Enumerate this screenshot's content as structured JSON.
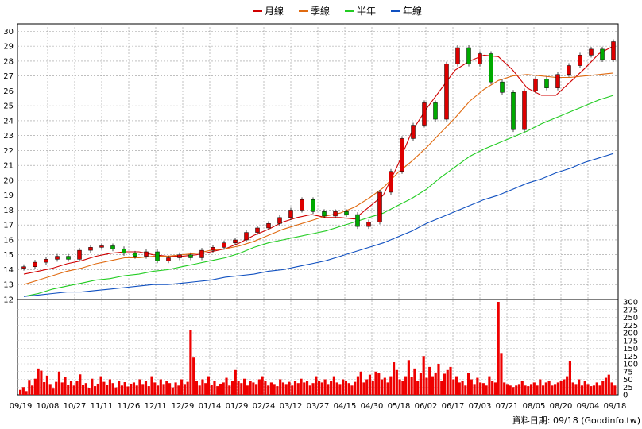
{
  "chart_data": [
    {
      "type": "candlestick",
      "legend": [
        {
          "name": "月線",
          "color": "#d00000"
        },
        {
          "name": "季線",
          "color": "#e06a10"
        },
        {
          "name": "半年",
          "color": "#22cc22"
        },
        {
          "name": "年線",
          "color": "#1050c0"
        }
      ],
      "legend_position": "top-center",
      "grid": true,
      "up_color": "#dd0000",
      "down_color": "#00aa00",
      "ylim": [
        12,
        30.5
      ],
      "yticks": [
        12,
        13,
        14,
        15,
        16,
        17,
        18,
        19,
        20,
        21,
        22,
        23,
        24,
        25,
        26,
        27,
        28,
        29,
        30
      ],
      "series": [
        {
          "name": "月線",
          "key": "ma_month",
          "values": [
            13.7,
            13.9,
            14.1,
            14.4,
            14.6,
            14.9,
            15.1,
            15.2,
            15.2,
            15.0,
            14.9,
            14.9,
            15.0,
            15.2,
            15.4,
            15.8,
            16.3,
            16.7,
            17.2,
            17.5,
            17.7,
            17.5,
            17.5,
            17.4,
            18.2,
            19.0,
            21.0,
            23.3,
            24.8,
            26.1,
            27.4,
            28.0,
            28.4,
            28.3,
            27.4,
            26.2,
            25.7,
            25.7,
            26.6,
            27.5,
            28.5,
            29.0
          ]
        },
        {
          "name": "季線",
          "key": "ma_quarter",
          "values": [
            13.0,
            13.3,
            13.6,
            13.9,
            14.1,
            14.4,
            14.6,
            14.8,
            14.8,
            14.9,
            14.9,
            15.0,
            15.1,
            15.3,
            15.4,
            15.6,
            15.9,
            16.3,
            16.7,
            17.0,
            17.3,
            17.6,
            17.8,
            18.2,
            18.8,
            19.5,
            20.5,
            21.3,
            22.2,
            23.2,
            24.2,
            25.3,
            26.1,
            26.7,
            27.0,
            27.1,
            27.0,
            26.9,
            26.9,
            27.0,
            27.1,
            27.2
          ]
        },
        {
          "name": "半年",
          "key": "ma_halfyear",
          "values": [
            12.2,
            12.4,
            12.7,
            12.9,
            13.1,
            13.3,
            13.4,
            13.6,
            13.7,
            13.9,
            14.0,
            14.2,
            14.4,
            14.6,
            14.8,
            15.1,
            15.5,
            15.8,
            16.0,
            16.2,
            16.4,
            16.6,
            16.9,
            17.2,
            17.5,
            17.8,
            18.3,
            18.8,
            19.4,
            20.2,
            20.9,
            21.6,
            22.1,
            22.5,
            22.9,
            23.3,
            23.8,
            24.2,
            24.6,
            25.0,
            25.4,
            25.7
          ]
        },
        {
          "name": "年線",
          "key": "ma_year",
          "values": [
            12.2,
            12.3,
            12.4,
            12.5,
            12.5,
            12.6,
            12.7,
            12.8,
            12.9,
            13.0,
            13.0,
            13.1,
            13.2,
            13.3,
            13.5,
            13.6,
            13.7,
            13.9,
            14.0,
            14.2,
            14.4,
            14.6,
            14.9,
            15.2,
            15.5,
            15.8,
            16.2,
            16.6,
            17.1,
            17.5,
            17.9,
            18.3,
            18.7,
            19.0,
            19.4,
            19.8,
            20.1,
            20.5,
            20.8,
            21.2,
            21.5,
            21.8
          ]
        }
      ],
      "close": [
        14.2,
        14.5,
        14.7,
        14.9,
        14.7,
        15.3,
        15.5,
        15.6,
        15.4,
        15.1,
        14.9,
        15.2,
        14.6,
        14.8,
        15.0,
        14.8,
        15.3,
        15.5,
        15.8,
        16.0,
        16.5,
        16.8,
        17.1,
        17.5,
        18.0,
        18.7,
        17.9,
        17.6,
        17.9,
        17.7,
        16.9,
        17.2,
        19.2,
        20.6,
        22.8,
        23.7,
        25.2,
        24.1,
        27.8,
        28.9,
        27.8,
        28.5,
        26.6,
        25.9,
        23.4,
        26.0,
        26.8,
        26.2,
        27.1,
        27.7,
        28.4,
        28.8,
        28.1,
        29.3
      ]
    },
    {
      "type": "bar",
      "title": "",
      "ylim": [
        0,
        300
      ],
      "yticks": [
        0,
        25,
        50,
        75,
        100,
        125,
        150,
        175,
        200,
        225,
        250,
        275,
        300
      ],
      "color": "#ee0000",
      "values": [
        16,
        25,
        12,
        48,
        30,
        52,
        85,
        78,
        41,
        62,
        35,
        20,
        42,
        75,
        40,
        58,
        32,
        45,
        30,
        44,
        66,
        31,
        38,
        22,
        52,
        28,
        36,
        60,
        42,
        32,
        50,
        38,
        24,
        45,
        30,
        41,
        27,
        36,
        40,
        30,
        50,
        35,
        45,
        28,
        60,
        40,
        30,
        50,
        35,
        45,
        38,
        24,
        40,
        30,
        50,
        35,
        42,
        210,
        120,
        45,
        30,
        50,
        38,
        60,
        32,
        45,
        28,
        36,
        40,
        55,
        30,
        45,
        80,
        45,
        38,
        52,
        30,
        45,
        40,
        35,
        50,
        60,
        45,
        30,
        40,
        35,
        28,
        50,
        40,
        35,
        42,
        30,
        45,
        38,
        52,
        40,
        45,
        30,
        38,
        60,
        45,
        40,
        50,
        35,
        45,
        60,
        40,
        35,
        50,
        45,
        38,
        30,
        42,
        60,
        75,
        40,
        50,
        65,
        45,
        75,
        70,
        50,
        55,
        40,
        60,
        105,
        80,
        50,
        45,
        60,
        112,
        58,
        85,
        46,
        70,
        125,
        55,
        90,
        60,
        72,
        100,
        45,
        68,
        80,
        90,
        50,
        60,
        40,
        45,
        30,
        70,
        50,
        35,
        55,
        40,
        38,
        30,
        60,
        45,
        40,
        300,
        135,
        40,
        35,
        30,
        25,
        30,
        35,
        45,
        30,
        28,
        35,
        40,
        30,
        50,
        30,
        40,
        45,
        30,
        35,
        40,
        45,
        50,
        60,
        110,
        40,
        35,
        50,
        30,
        45,
        35,
        28,
        30,
        40,
        30,
        45,
        55,
        65,
        40,
        30
      ]
    },
    {
      "type": "axis",
      "xticks": [
        "09/19",
        "10/08",
        "10/27",
        "11/11",
        "11/26",
        "12/11",
        "12/29",
        "01/14",
        "01/29",
        "02/24",
        "03/12",
        "03/27",
        "04/15",
        "04/30",
        "05/18",
        "06/02",
        "06/17",
        "07/03",
        "07/21",
        "08/05",
        "08/20",
        "09/04",
        "09/18"
      ]
    }
  ],
  "footer": {
    "text": "資料日期: 09/18  (Goodinfo.tw)"
  }
}
